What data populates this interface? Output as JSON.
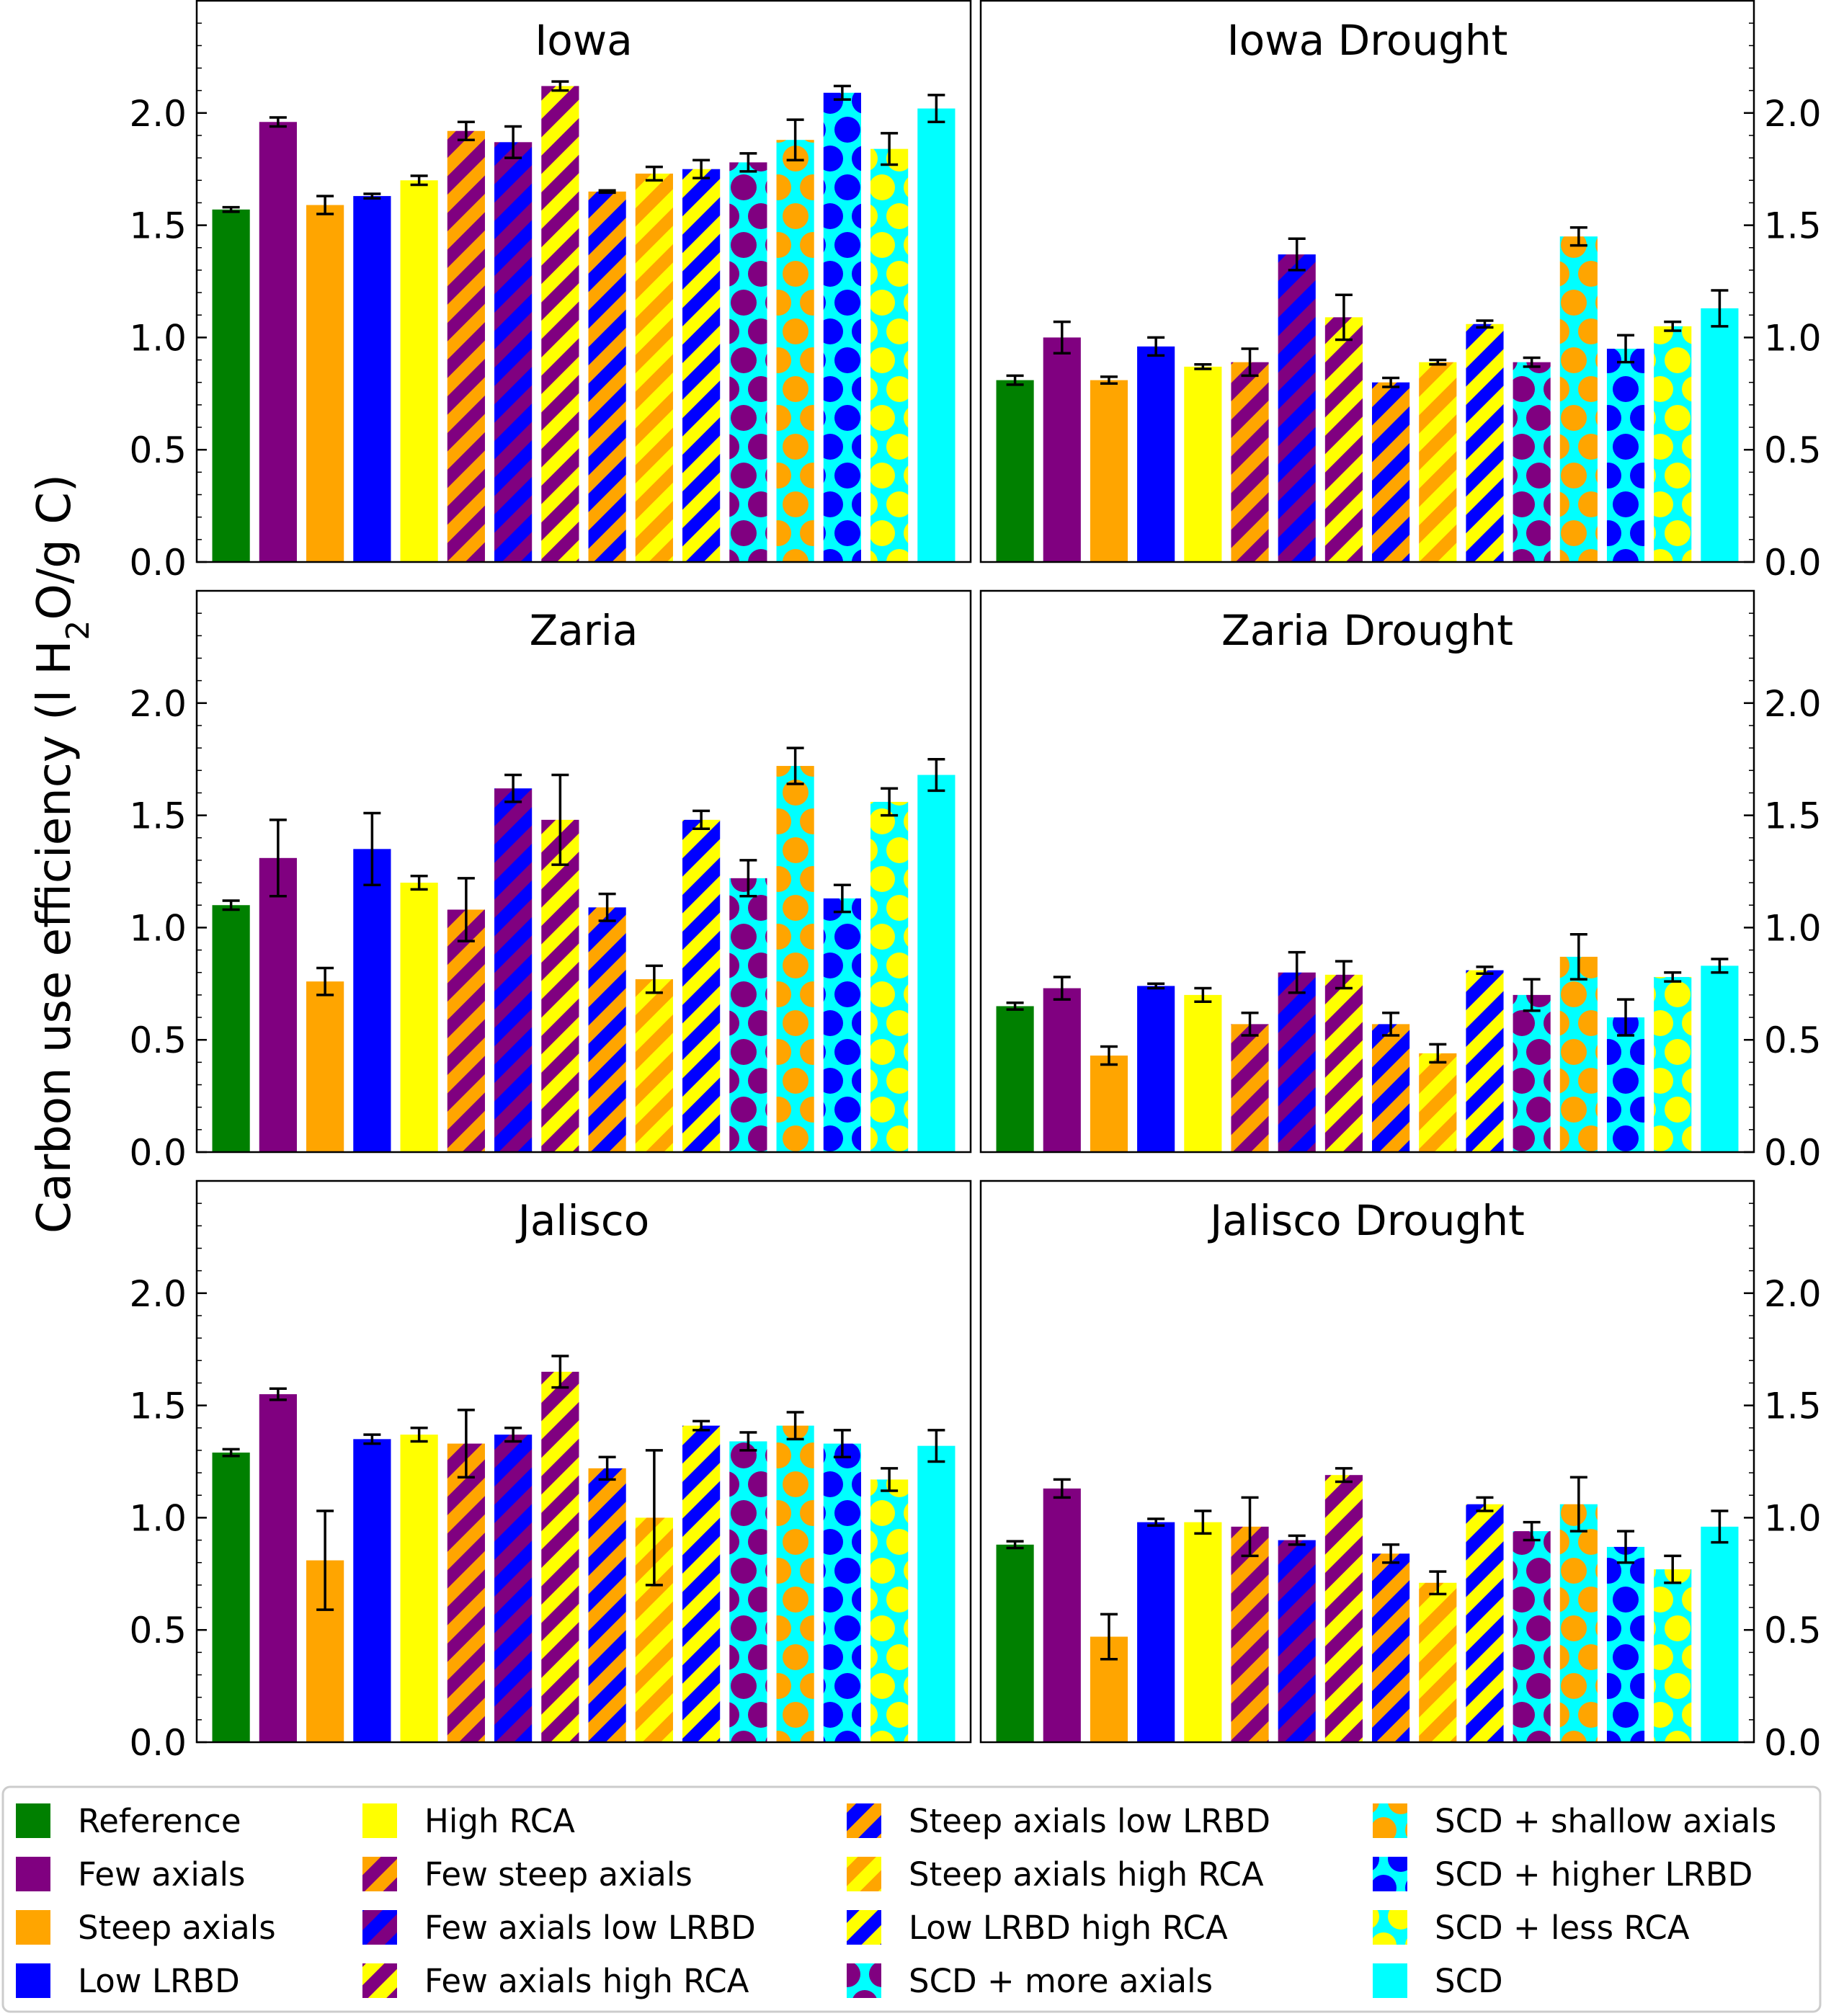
{
  "chart_data": {
    "type": "bar",
    "ylabel_main": "Carbon use efficiency (l H",
    "ylabel_sub": "2",
    "ylabel_tail": "O/g C)",
    "ylim": [
      0,
      2.5
    ],
    "yticks": [
      "0.0",
      "0.5",
      "1.0",
      "1.5",
      "2.0"
    ],
    "ytick_values": [
      0,
      0.5,
      1.0,
      1.5,
      2.0
    ],
    "colors": {
      "green": "#008000",
      "purple": "#800080",
      "orange": "#FFA500",
      "blue": "#0000FF",
      "yellow": "#FFFF00",
      "cyan": "#00FFFF"
    },
    "categories": [
      {
        "name": "Reference",
        "style": "solid",
        "c1": "green"
      },
      {
        "name": "Few axials",
        "style": "solid",
        "c1": "purple"
      },
      {
        "name": "Steep axials",
        "style": "solid",
        "c1": "orange"
      },
      {
        "name": "Low LRBD",
        "style": "solid",
        "c1": "blue"
      },
      {
        "name": "High RCA",
        "style": "solid",
        "c1": "yellow"
      },
      {
        "name": "Few steep axials",
        "style": "stripe",
        "c1": "purple",
        "c2": "orange"
      },
      {
        "name": "Few axials low LRBD",
        "style": "stripe",
        "c1": "purple",
        "c2": "blue"
      },
      {
        "name": "Few axials high RCA",
        "style": "stripe",
        "c1": "purple",
        "c2": "yellow"
      },
      {
        "name": "Steep axials low LRBD",
        "style": "stripe",
        "c1": "orange",
        "c2": "blue"
      },
      {
        "name": "Steep axials high RCA",
        "style": "stripe",
        "c1": "orange",
        "c2": "yellow"
      },
      {
        "name": "Low LRBD high RCA",
        "style": "stripe",
        "c1": "blue",
        "c2": "yellow"
      },
      {
        "name": "SCD + more axials",
        "style": "dots",
        "c1": "cyan",
        "c2": "purple"
      },
      {
        "name": "SCD + shallow axials",
        "style": "dots",
        "c1": "cyan",
        "c2": "orange"
      },
      {
        "name": "SCD + higher LRBD",
        "style": "dots",
        "c1": "cyan",
        "c2": "blue"
      },
      {
        "name": "SCD + less RCA",
        "style": "dots",
        "c1": "cyan",
        "c2": "yellow"
      },
      {
        "name": "SCD",
        "style": "solid",
        "c1": "cyan"
      }
    ],
    "panels": [
      {
        "title": "Iowa",
        "values": [
          1.57,
          1.96,
          1.59,
          1.63,
          1.7,
          1.92,
          1.87,
          2.12,
          1.65,
          1.73,
          1.75,
          1.78,
          1.88,
          2.09,
          1.84,
          2.02
        ],
        "errors": [
          0.01,
          0.02,
          0.04,
          0.01,
          0.02,
          0.04,
          0.07,
          0.02,
          0.005,
          0.03,
          0.04,
          0.04,
          0.09,
          0.03,
          0.07,
          0.06
        ]
      },
      {
        "title": "Iowa Drought",
        "values": [
          0.81,
          1.0,
          0.81,
          0.96,
          0.87,
          0.89,
          1.37,
          1.09,
          0.8,
          0.89,
          1.06,
          0.89,
          1.45,
          0.95,
          1.05,
          1.13
        ],
        "errors": [
          0.02,
          0.07,
          0.015,
          0.04,
          0.01,
          0.06,
          0.07,
          0.1,
          0.02,
          0.01,
          0.015,
          0.02,
          0.04,
          0.06,
          0.02,
          0.08
        ]
      },
      {
        "title": "Zaria",
        "values": [
          1.1,
          1.31,
          0.76,
          1.35,
          1.2,
          1.08,
          1.62,
          1.48,
          1.09,
          0.77,
          1.48,
          1.22,
          1.72,
          1.13,
          1.56,
          1.68
        ],
        "errors": [
          0.02,
          0.17,
          0.06,
          0.16,
          0.03,
          0.14,
          0.06,
          0.2,
          0.06,
          0.06,
          0.04,
          0.08,
          0.08,
          0.06,
          0.06,
          0.07
        ]
      },
      {
        "title": "Zaria Drought",
        "values": [
          0.65,
          0.73,
          0.43,
          0.74,
          0.7,
          0.57,
          0.8,
          0.79,
          0.57,
          0.44,
          0.81,
          0.7,
          0.87,
          0.6,
          0.78,
          0.83
        ],
        "errors": [
          0.015,
          0.05,
          0.04,
          0.01,
          0.03,
          0.05,
          0.09,
          0.06,
          0.05,
          0.04,
          0.015,
          0.07,
          0.1,
          0.08,
          0.02,
          0.03
        ]
      },
      {
        "title": "Jalisco",
        "values": [
          1.29,
          1.55,
          0.81,
          1.35,
          1.37,
          1.33,
          1.37,
          1.65,
          1.22,
          1.0,
          1.41,
          1.34,
          1.41,
          1.33,
          1.17,
          1.32
        ],
        "errors": [
          0.015,
          0.025,
          0.22,
          0.02,
          0.03,
          0.15,
          0.03,
          0.07,
          0.05,
          0.3,
          0.02,
          0.04,
          0.06,
          0.06,
          0.05,
          0.07
        ]
      },
      {
        "title": "Jalisco Drought",
        "values": [
          0.88,
          1.13,
          0.47,
          0.98,
          0.98,
          0.96,
          0.9,
          1.19,
          0.84,
          0.71,
          1.06,
          0.94,
          1.06,
          0.87,
          0.77,
          0.96
        ],
        "errors": [
          0.015,
          0.04,
          0.1,
          0.015,
          0.05,
          0.13,
          0.02,
          0.03,
          0.04,
          0.05,
          0.03,
          0.04,
          0.12,
          0.07,
          0.06,
          0.07
        ]
      }
    ],
    "legend": {
      "placement": "bottom",
      "columns": 4
    }
  }
}
